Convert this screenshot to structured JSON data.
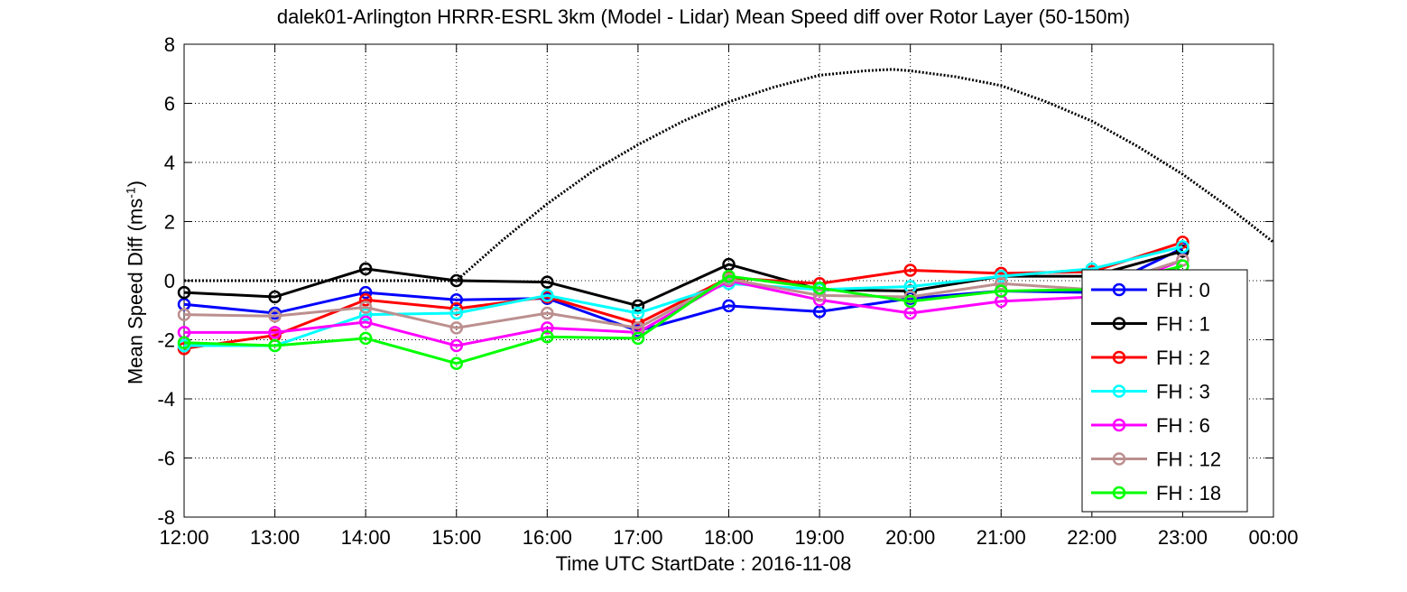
{
  "chart_data": {
    "type": "line",
    "title": "dalek01-Arlington HRRR-ESRL 3km (Model - Lidar) Mean Speed diff over Rotor Layer (50-150m)",
    "xlabel": "Time UTC    StartDate : 2016-11-08",
    "ylabel_main": "Mean Speed Diff (ms",
    "ylabel_sup": "-1",
    "ylabel_end": ")",
    "x_ticks": [
      "12:00",
      "13:00",
      "14:00",
      "15:00",
      "16:00",
      "17:00",
      "18:00",
      "19:00",
      "20:00",
      "21:00",
      "22:00",
      "23:00",
      "00:00"
    ],
    "xlim": [
      12,
      24
    ],
    "y_ticks": [
      "-8",
      "-6",
      "-4",
      "-2",
      "0",
      "2",
      "4",
      "6",
      "8"
    ],
    "ylim": [
      -8,
      8
    ],
    "grid": true,
    "legend_position": "bottom-right",
    "x": [
      12,
      13,
      14,
      15,
      16,
      17,
      18,
      19,
      20,
      21,
      22,
      23
    ],
    "series": [
      {
        "name": "FH : 0",
        "color": "#0000ff",
        "values": [
          -0.8,
          -1.1,
          -0.4,
          -0.65,
          -0.6,
          -1.7,
          -0.85,
          -1.05,
          -0.6,
          -0.35,
          -0.4,
          1.1
        ]
      },
      {
        "name": "FH : 1",
        "color": "#000000",
        "values": [
          -0.4,
          -0.55,
          0.4,
          0.0,
          -0.05,
          -0.85,
          0.55,
          -0.3,
          -0.35,
          0.15,
          0.15,
          1.0
        ]
      },
      {
        "name": "FH : 2",
        "color": "#ff0000",
        "values": [
          -2.3,
          -1.85,
          -0.65,
          -0.95,
          -0.55,
          -1.45,
          0.1,
          -0.1,
          0.35,
          0.25,
          0.3,
          1.3
        ]
      },
      {
        "name": "FH : 3",
        "color": "#00ffff",
        "values": [
          -2.2,
          -2.2,
          -1.15,
          -1.1,
          -0.5,
          -1.1,
          -0.1,
          -0.3,
          -0.2,
          0.15,
          0.4,
          1.15
        ]
      },
      {
        "name": "FH : 6",
        "color": "#ff00ff",
        "values": [
          -1.75,
          -1.75,
          -1.4,
          -2.2,
          -1.6,
          -1.75,
          0.0,
          -0.65,
          -1.1,
          -0.7,
          -0.55,
          0.7
        ]
      },
      {
        "name": "FH : 12",
        "color": "#bc8f8f",
        "values": [
          -1.15,
          -1.2,
          -0.9,
          -1.6,
          -1.1,
          -1.6,
          0.05,
          -0.5,
          -0.55,
          -0.1,
          -0.3,
          0.7
        ]
      },
      {
        "name": "FH : 18",
        "color": "#00ff00",
        "values": [
          -2.1,
          -2.2,
          -1.95,
          -2.8,
          -1.9,
          -1.95,
          0.15,
          -0.25,
          -0.7,
          -0.35,
          -0.3,
          0.5
        ]
      }
    ],
    "reference_curve": {
      "style": "dotted",
      "color": "#000000",
      "x": [
        12,
        13,
        14,
        15,
        15.5,
        16,
        16.5,
        17,
        17.5,
        18,
        18.5,
        19,
        19.5,
        19.8,
        20,
        20.5,
        21,
        21.5,
        22,
        22.5,
        23,
        23.5,
        24
      ],
      "values": [
        0,
        0,
        0,
        0,
        1.35,
        2.6,
        3.7,
        4.6,
        5.4,
        6.05,
        6.55,
        6.95,
        7.1,
        7.15,
        7.1,
        6.9,
        6.6,
        6.05,
        5.4,
        4.55,
        3.6,
        2.5,
        1.3
      ]
    }
  }
}
